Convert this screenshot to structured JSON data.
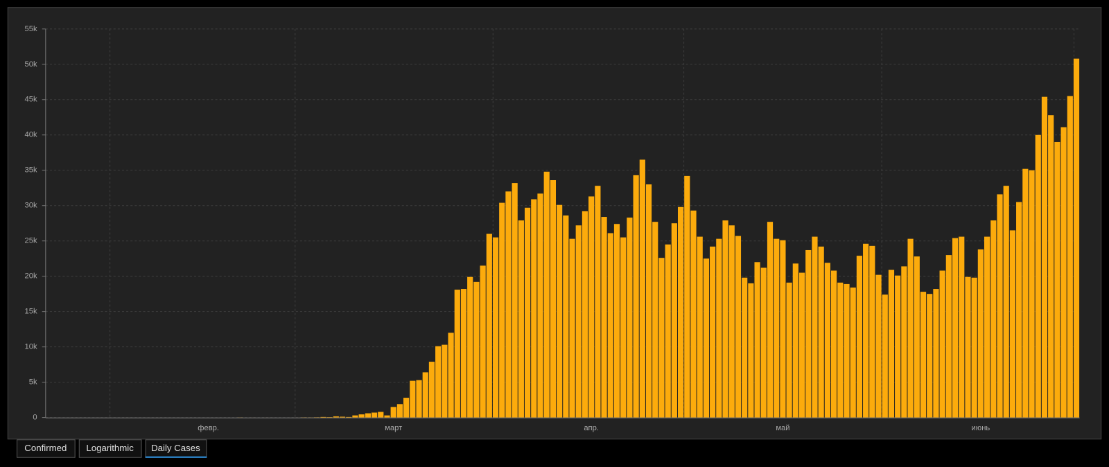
{
  "chart_data": {
    "type": "bar",
    "color": "#fcab0c",
    "categories": [
      null,
      null,
      null,
      null,
      null,
      null,
      null,
      null,
      null,
      null,
      null,
      null,
      null,
      null,
      null,
      null,
      null,
      null,
      null,
      null,
      null,
      null,
      null,
      null,
      null,
      "февр.",
      null,
      null,
      null,
      null,
      null,
      null,
      null,
      null,
      null,
      null,
      null,
      null,
      null,
      null,
      null,
      null,
      null,
      null,
      null,
      null,
      null,
      null,
      null,
      null,
      null,
      null,
      null,
      null,
      "март",
      null,
      null,
      null,
      null,
      null,
      null,
      null,
      null,
      null,
      null,
      null,
      null,
      null,
      null,
      null,
      null,
      null,
      null,
      null,
      null,
      null,
      null,
      null,
      null,
      null,
      null,
      null,
      null,
      null,
      null,
      "апр.",
      null,
      null,
      null,
      null,
      null,
      null,
      null,
      null,
      null,
      null,
      null,
      null,
      null,
      null,
      null,
      null,
      null,
      null,
      null,
      null,
      null,
      null,
      null,
      null,
      null,
      null,
      null,
      null,
      null,
      "май",
      null,
      null,
      null,
      null,
      null,
      null,
      null,
      null,
      null,
      null,
      null,
      null,
      null,
      null,
      null,
      null,
      null,
      null,
      null,
      null,
      null,
      null,
      null,
      null,
      null,
      null,
      null,
      null,
      null,
      null,
      "июнь",
      null,
      null,
      null,
      null,
      null,
      null,
      null,
      null,
      null,
      null,
      null,
      null,
      null,
      null,
      null
    ],
    "values": [
      1,
      0,
      1,
      0,
      3,
      0,
      0,
      0,
      0,
      1,
      1,
      1,
      3,
      0,
      0,
      0,
      1,
      0,
      0,
      1,
      0,
      0,
      0,
      0,
      0,
      0,
      0,
      0,
      0,
      0,
      18,
      0,
      6,
      1,
      6,
      3,
      0,
      2,
      3,
      7,
      23,
      19,
      33,
      77,
      53,
      166,
      116,
      75,
      300,
      450,
      600,
      700,
      800,
      300,
      1500,
      1900,
      2800,
      5200,
      5300,
      6400,
      7900,
      10100,
      10300,
      12000,
      18100,
      18200,
      19900,
      19200,
      21500,
      26000,
      25500,
      30400,
      32000,
      33200,
      27900,
      29700,
      30900,
      31700,
      34800,
      33600,
      30100,
      28600,
      25300,
      27200,
      29200,
      31300,
      32800,
      28400,
      26100,
      27400,
      25500,
      28300,
      34300,
      36500,
      33000,
      27700,
      22600,
      24500,
      27500,
      29800,
      34200,
      29300,
      25600,
      22500,
      24200,
      25300,
      27900,
      27200,
      25700,
      19800,
      19000,
      22000,
      21200,
      27700,
      25300,
      25100,
      19100,
      21800,
      20500,
      23700,
      25600,
      24200,
      21900,
      20800,
      19100,
      18900,
      18400,
      22900,
      24600,
      24300,
      20200,
      17400,
      20900,
      20100,
      21400,
      25300,
      22800,
      17800,
      17500,
      18200,
      20800,
      23000,
      25400,
      25600,
      19900,
      19800,
      23800,
      25600,
      27900,
      31600,
      32800,
      26500,
      30500,
      35200,
      35000,
      40000,
      45400,
      42800,
      39000,
      41100,
      45500,
      50800
    ],
    "ylim": [
      0,
      55000
    ],
    "yticks": [
      0,
      {
        "value": 5000,
        "label": "5k"
      },
      {
        "value": 10000,
        "label": "10k"
      },
      {
        "value": 15000,
        "label": "15k"
      },
      {
        "value": 20000,
        "label": "20k"
      },
      {
        "value": 25000,
        "label": "25k"
      },
      {
        "value": 30000,
        "label": "30k"
      },
      {
        "value": 35000,
        "label": "35k"
      },
      {
        "value": 40000,
        "label": "40k"
      },
      {
        "value": 45000,
        "label": "45k"
      },
      {
        "value": 50000,
        "label": "50k"
      },
      {
        "value": 55000,
        "label": "55k"
      }
    ],
    "grid": true
  },
  "tabs": [
    "Confirmed",
    "Logarithmic",
    "Daily Cases"
  ],
  "active_tab": 2
}
